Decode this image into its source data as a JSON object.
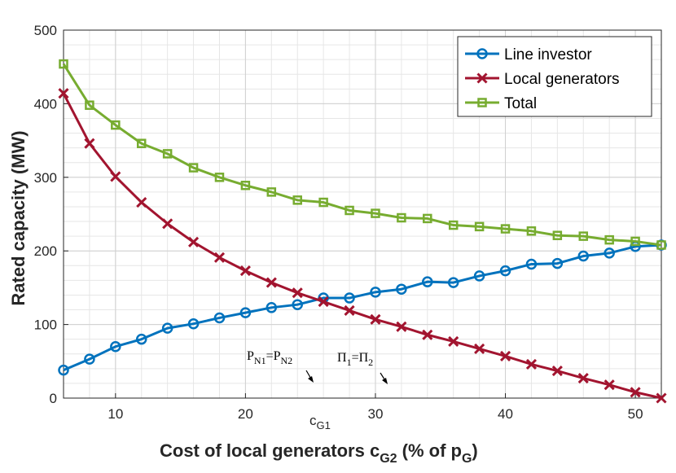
{
  "chart_data": {
    "type": "line",
    "xlabel": "Cost of local generators c_G2 (% of p_G)",
    "ylabel": "Rated capacity (MW)",
    "xlim": [
      6,
      52
    ],
    "ylim": [
      0,
      500
    ],
    "xticks": [
      10,
      20,
      30,
      40,
      50
    ],
    "yticks": [
      0,
      100,
      200,
      300,
      400,
      500
    ],
    "grid": true,
    "legend_position": "top-right",
    "x": [
      6,
      8,
      10,
      12,
      14,
      16,
      18,
      20,
      22,
      24,
      26,
      28,
      30,
      32,
      34,
      36,
      38,
      40,
      42,
      44,
      46,
      48,
      50,
      52
    ],
    "series": [
      {
        "name": "Line investor",
        "color": "#0072BD",
        "marker": "circle",
        "values": [
          38,
          53,
          70,
          80,
          95,
          101,
          109,
          116,
          123,
          127,
          136,
          136,
          144,
          148,
          158,
          157,
          166,
          173,
          182,
          183,
          193,
          197,
          206,
          208
        ]
      },
      {
        "name": "Local generators",
        "color": "#A2142F",
        "marker": "x",
        "values": [
          414,
          346,
          301,
          266,
          237,
          212,
          191,
          173,
          157,
          143,
          131,
          119,
          107,
          97,
          86,
          77,
          67,
          57,
          46,
          37,
          27,
          18,
          8,
          0
        ]
      },
      {
        "name": "Total",
        "color": "#77AC30",
        "marker": "square",
        "values": [
          454,
          398,
          371,
          346,
          332,
          313,
          300,
          289,
          280,
          269,
          266,
          255,
          251,
          245,
          244,
          235,
          233,
          230,
          227,
          221,
          220,
          215,
          213,
          208
        ]
      }
    ],
    "annotations": {
      "pn": {
        "p": "P",
        "n1": "N1",
        "eq": "=",
        "n2": "N2",
        "arrow_to": [
          24.5,
          18
        ]
      },
      "pi": {
        "pi": "Π",
        "s1": "1",
        "eq": "=",
        "s2": "2",
        "arrow_to": [
          31,
          18
        ]
      },
      "cg1": {
        "c": "c",
        "sub": "G1",
        "x": 25.8
      }
    },
    "xlabel_parts": {
      "main": "Cost of local generators c",
      "sub1": "G2",
      "mid": " (% of p",
      "sub2": "G",
      "end": ")"
    }
  }
}
